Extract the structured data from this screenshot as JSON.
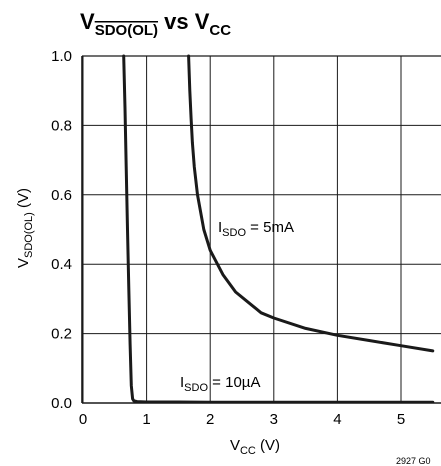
{
  "chart_data": {
    "type": "line",
    "title": "V‾SDO(OL) vs VCC",
    "title_parts": {
      "main": "V",
      "sub": "SDO(OL)",
      "rest": " vs V",
      "sub2": "CC"
    },
    "xlabel": "VCC (V)",
    "xlabel_parts": {
      "main": "V",
      "sub": "CC",
      "rest": " (V)"
    },
    "ylabel": "VSDO(OL) (V)",
    "ylabel_parts": {
      "main": "V",
      "sub": "SDO(OL)",
      "rest": " (V)"
    },
    "xlim": [
      0,
      5.5
    ],
    "ylim": [
      0,
      1.0
    ],
    "x_ticks": [
      "0",
      "1",
      "2",
      "3",
      "4",
      "5"
    ],
    "y_ticks": [
      "0.0",
      "0.2",
      "0.4",
      "0.6",
      "0.8",
      "1.0"
    ],
    "grid": true,
    "series": [
      {
        "name": "ISDO = 10µA",
        "label_parts": {
          "main": "I",
          "sub": "SDO",
          "rest": " = 10µA"
        },
        "x": [
          0.64,
          0.66,
          0.68,
          0.7,
          0.72,
          0.74,
          0.76,
          0.78,
          0.8,
          0.85,
          1.0,
          1.5,
          2.0,
          3.0,
          4.0,
          5.0,
          5.5
        ],
        "y": [
          1.0,
          0.85,
          0.68,
          0.5,
          0.33,
          0.17,
          0.05,
          0.012,
          0.006,
          0.004,
          0.003,
          0.003,
          0.002,
          0.002,
          0.002,
          0.002,
          0.002
        ]
      },
      {
        "name": "ISDO = 5mA",
        "label_parts": {
          "main": "I",
          "sub": "SDO",
          "rest": " = 5mA"
        },
        "x": [
          1.66,
          1.68,
          1.7,
          1.72,
          1.75,
          1.8,
          1.9,
          2.0,
          2.2,
          2.4,
          2.6,
          2.8,
          3.0,
          3.5,
          4.0,
          4.5,
          5.0,
          5.5
        ],
        "y": [
          1.0,
          0.9,
          0.82,
          0.75,
          0.68,
          0.6,
          0.5,
          0.44,
          0.37,
          0.32,
          0.29,
          0.26,
          0.245,
          0.215,
          0.195,
          0.18,
          0.165,
          0.15
        ]
      }
    ],
    "figure_code": "2927 G0"
  }
}
